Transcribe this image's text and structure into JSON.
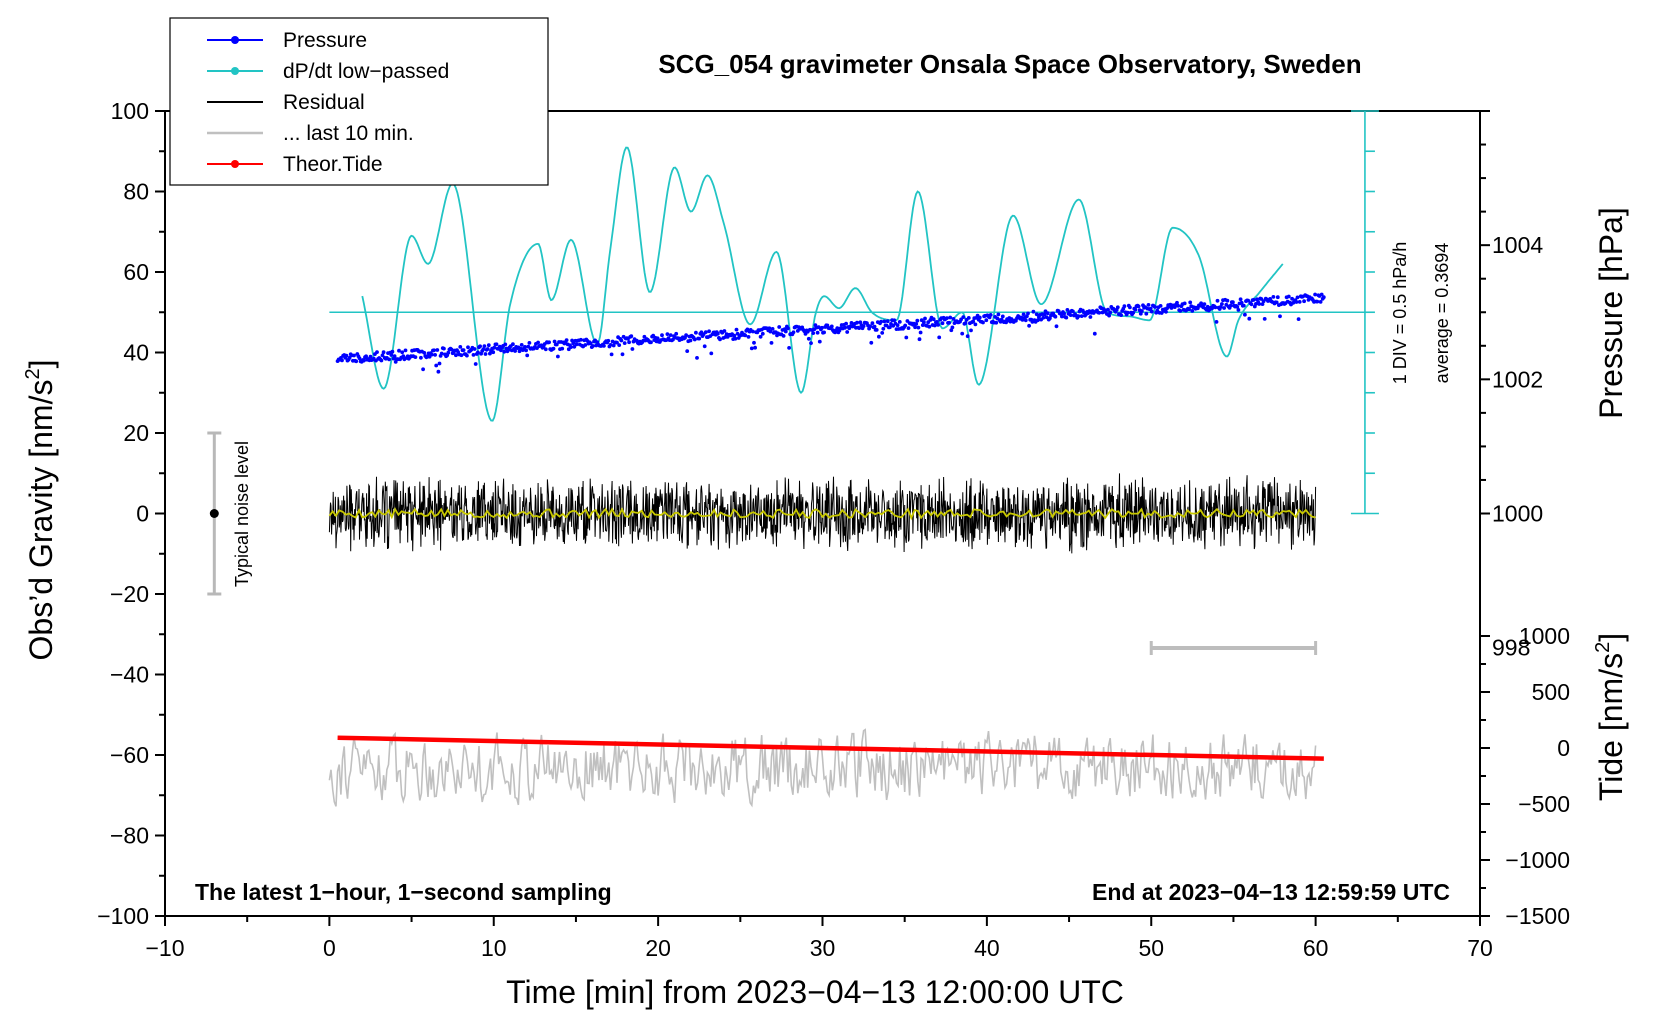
{
  "chart_data": {
    "type": "line",
    "title": "SCG_054 gravimeter Onsala Space Observatory, Sweden",
    "xlabel": "Time [min] from 2023−04−13 12:00:00 UTC",
    "ylabel": "Obs’d Gravity [nm/s",
    "ylabel_sup": "2",
    "ylabel_tail": "]",
    "y2label": "Pressure [hPa]",
    "y3label": "Tide [nm/s",
    "y3label_sup": "2",
    "y3label_tail": "]",
    "xlim": [
      -10,
      70
    ],
    "ylim": [
      -100,
      100
    ],
    "xticks": [
      "−10",
      "0",
      "10",
      "20",
      "30",
      "40",
      "50",
      "60",
      "70"
    ],
    "yticks": [
      "−100",
      "−80",
      "−60",
      "−40",
      "−20",
      "0",
      "20",
      "40",
      "60",
      "80",
      "100"
    ],
    "pressure_axis": {
      "ticks": [
        "998",
        "1000",
        "1002",
        "1004"
      ],
      "tick_values": [
        998,
        1000,
        1002,
        1004
      ],
      "range": [
        994,
        1006
      ]
    },
    "tide_axis": {
      "ticks": [
        "−1500",
        "−1000",
        "−500",
        "0",
        "500",
        "1000"
      ],
      "tick_values": [
        -1500,
        -1000,
        -500,
        0,
        500,
        1000
      ],
      "range": [
        -1500,
        1500
      ]
    },
    "legend": [
      {
        "label": "Pressure",
        "color": "#0000ff",
        "marker": true
      },
      {
        "label": "dP/dt low−passed",
        "color": "#22c4c4",
        "marker": true
      },
      {
        "label": "Residual",
        "color": "#000000",
        "marker": false
      },
      {
        "label": "... last 10 min.",
        "color": "#c0c0c0",
        "marker": false
      },
      {
        "label": "Theor.Tide",
        "color": "#ff0000",
        "marker": true
      }
    ],
    "series": [
      {
        "name": "Pressure",
        "color": "#0000ff",
        "axis": "pressure",
        "start": 1002.3,
        "end": 1003.2
      },
      {
        "name": "dP/dt low-passed",
        "color": "#22c4c4",
        "axis": "gravity",
        "baseline": 50,
        "x": [
          2.0,
          3.3,
          5.0,
          6.0,
          7.5,
          9.9,
          11.0,
          12.7,
          13.5,
          14.7,
          16.3,
          17.1,
          18.1,
          19.5,
          21.0,
          22.0,
          23.0,
          24.0,
          25.6,
          27.2,
          28.7,
          29.6,
          30.1,
          31.0,
          32.0,
          33.0,
          34.5,
          35.8,
          37.3,
          38.5,
          39.5,
          41.6,
          43.3,
          45.6,
          47.3,
          48.6,
          49.9,
          51.3,
          52.9,
          54.6,
          55.3,
          56.6,
          58.0
        ],
        "y": [
          54,
          31,
          69,
          62,
          82,
          23,
          52,
          67,
          53,
          68,
          42,
          66,
          91,
          55,
          86,
          75,
          84,
          72,
          47,
          65,
          30,
          50,
          54,
          51,
          56,
          50,
          48,
          80,
          46,
          50,
          32,
          74,
          52,
          78,
          50,
          49,
          48,
          71,
          64,
          39,
          48,
          55,
          62
        ]
      },
      {
        "name": "Residual",
        "color": "#000000",
        "axis": "gravity",
        "center": 0,
        "amplitude": 10
      },
      {
        "name": "... last 10 min.",
        "color": "#c0c0c0",
        "axis": "gravity",
        "center": -63,
        "amplitude": 8
      },
      {
        "name": "Theor.Tide",
        "color": "#ff0000",
        "axis": "tide",
        "x": [
          0.5,
          60.5
        ],
        "y": [
          92,
          -95
        ]
      }
    ],
    "noise_bar": {
      "label": "Typical noise level",
      "x": -7,
      "y": 0,
      "ymin": -20,
      "ymax": 20
    },
    "pressure_scale_bar": {
      "label": "1 DIV = 0.5 hPa/h",
      "average_label": "average = 0.3694",
      "x": 63,
      "y_bottom": 0,
      "y_top": 100
    },
    "last10_bar": {
      "x_start": 50,
      "x_end": 60
    },
    "footer_left": "The latest 1−hour, 1−second sampling",
    "footer_right": "End at 2023−04−13 12:59:59 UTC"
  }
}
